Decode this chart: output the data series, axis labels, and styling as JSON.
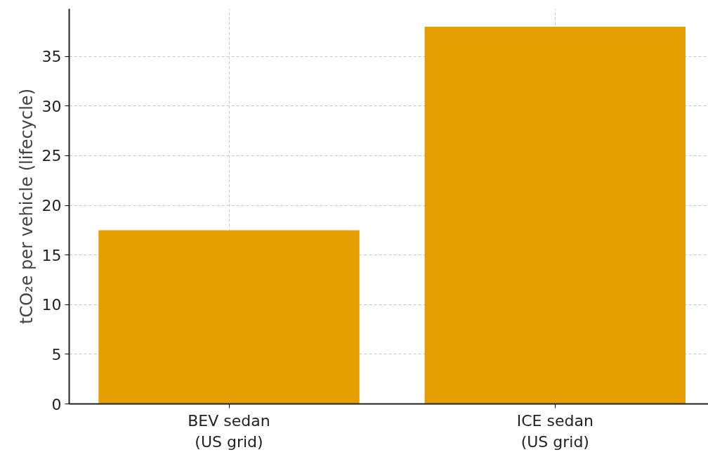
{
  "chart_data": {
    "type": "bar",
    "ylabel": "tCO₂e per vehicle (lifecycle)",
    "categories": [
      "BEV sedan\n(US grid)",
      "ICE sedan\n(US grid)"
    ],
    "values": [
      17.5,
      38
    ],
    "color": "#e69f00",
    "ylim": [
      0,
      39.8
    ],
    "yticks": [
      0,
      5,
      10,
      15,
      20,
      25,
      30,
      35
    ],
    "grid": true
  }
}
